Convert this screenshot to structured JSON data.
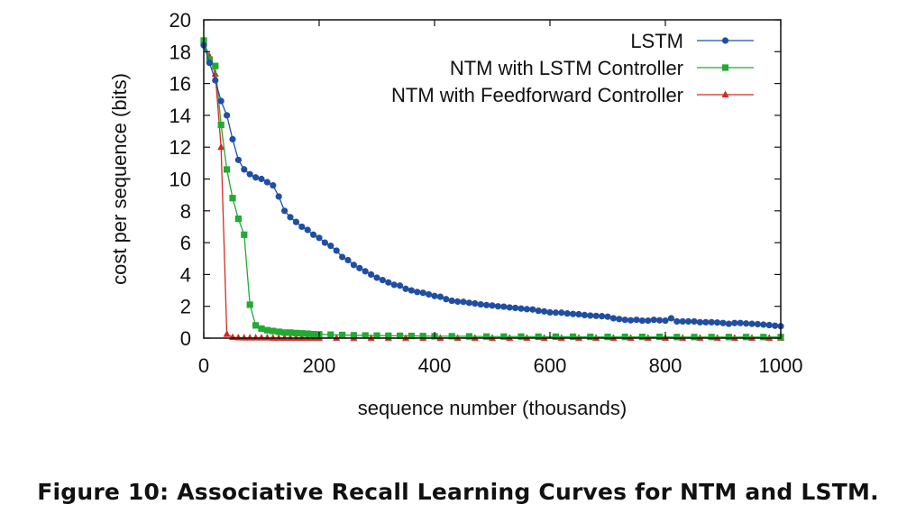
{
  "caption": "Figure 10: Associative Recall Learning Curves for NTM and LSTM.",
  "chart_data": {
    "type": "line",
    "xlabel": "sequence number (thousands)",
    "ylabel": "cost per sequence (bits)",
    "xlim": [
      0,
      1000
    ],
    "ylim": [
      0,
      20
    ],
    "xticks": [
      0,
      200,
      400,
      600,
      800,
      1000
    ],
    "yticks": [
      0,
      2,
      4,
      6,
      8,
      10,
      12,
      14,
      16,
      18,
      20
    ],
    "grid": false,
    "legend_position": "top-right",
    "series": [
      {
        "name": "LSTM",
        "color": "#1f4ea3",
        "marker": "circle",
        "x": [
          0,
          10,
          20,
          30,
          40,
          50,
          60,
          70,
          80,
          90,
          100,
          110,
          120,
          130,
          140,
          150,
          160,
          170,
          180,
          190,
          200,
          210,
          220,
          230,
          240,
          250,
          260,
          270,
          280,
          290,
          300,
          310,
          320,
          330,
          340,
          350,
          360,
          370,
          380,
          390,
          400,
          410,
          420,
          430,
          440,
          450,
          460,
          470,
          480,
          490,
          500,
          510,
          520,
          530,
          540,
          550,
          560,
          570,
          580,
          590,
          600,
          610,
          620,
          630,
          640,
          650,
          660,
          670,
          680,
          690,
          700,
          710,
          720,
          730,
          740,
          750,
          760,
          770,
          780,
          790,
          800,
          810,
          820,
          830,
          840,
          850,
          860,
          870,
          880,
          890,
          900,
          910,
          920,
          930,
          940,
          950,
          960,
          970,
          980,
          990,
          1000
        ],
        "y": [
          18.4,
          17.3,
          16.2,
          14.9,
          14.0,
          12.5,
          11.2,
          10.6,
          10.3,
          10.1,
          10.0,
          9.8,
          9.6,
          8.9,
          8.0,
          7.6,
          7.3,
          7.0,
          6.8,
          6.5,
          6.3,
          6.0,
          5.8,
          5.5,
          5.1,
          4.9,
          4.6,
          4.4,
          4.2,
          4.0,
          3.8,
          3.65,
          3.5,
          3.35,
          3.3,
          3.1,
          3.0,
          2.9,
          2.85,
          2.75,
          2.65,
          2.6,
          2.45,
          2.35,
          2.3,
          2.28,
          2.22,
          2.18,
          2.12,
          2.08,
          2.05,
          2.0,
          1.98,
          1.93,
          1.9,
          1.86,
          1.82,
          1.8,
          1.72,
          1.68,
          1.62,
          1.6,
          1.6,
          1.55,
          1.52,
          1.5,
          1.45,
          1.42,
          1.4,
          1.38,
          1.35,
          1.25,
          1.2,
          1.15,
          1.12,
          1.15,
          1.1,
          1.1,
          1.15,
          1.12,
          1.1,
          1.25,
          1.05,
          1.05,
          1.05,
          1.05,
          1.0,
          1.0,
          1.0,
          0.98,
          0.95,
          0.9,
          0.95,
          0.95,
          0.92,
          0.9,
          0.88,
          0.85,
          0.82,
          0.78,
          0.75
        ]
      },
      {
        "name": "NTM with LSTM Controller",
        "color": "#22aa33",
        "marker": "square",
        "x": [
          0,
          10,
          20,
          30,
          40,
          50,
          60,
          70,
          80,
          90,
          100,
          110,
          120,
          130,
          140,
          150,
          160,
          170,
          180,
          190,
          200,
          220,
          240,
          260,
          280,
          300,
          320,
          340,
          360,
          380,
          400,
          430,
          460,
          490,
          520,
          550,
          580,
          610,
          640,
          670,
          700,
          730,
          760,
          790,
          820,
          850,
          880,
          910,
          940,
          970,
          1000
        ],
        "y": [
          18.7,
          17.5,
          17.1,
          13.4,
          10.6,
          8.8,
          7.5,
          6.5,
          2.1,
          0.8,
          0.6,
          0.5,
          0.45,
          0.4,
          0.35,
          0.35,
          0.32,
          0.3,
          0.28,
          0.25,
          0.24,
          0.22,
          0.2,
          0.18,
          0.17,
          0.16,
          0.15,
          0.15,
          0.14,
          0.13,
          0.12,
          0.12,
          0.11,
          0.1,
          0.1,
          0.1,
          0.09,
          0.09,
          0.09,
          0.08,
          0.08,
          0.08,
          0.08,
          0.08,
          0.07,
          0.07,
          0.07,
          0.07,
          0.07,
          0.07,
          0.07
        ]
      },
      {
        "name": "NTM with Feedforward Controller",
        "color": "#d42a1e",
        "marker": "triangle",
        "x": [
          0,
          10,
          20,
          30,
          40,
          50,
          60,
          70,
          80,
          90,
          100,
          110,
          120,
          130,
          140,
          150,
          160,
          170,
          180,
          190,
          200,
          230,
          260,
          290,
          320,
          350,
          380,
          410,
          440,
          470,
          500,
          530,
          560,
          590,
          620,
          650,
          680,
          710,
          740,
          770,
          800,
          830,
          860,
          890,
          920,
          950,
          980,
          1000
        ],
        "y": [
          18.6,
          17.7,
          16.6,
          12.0,
          0.25,
          0.05,
          0.03,
          0.02,
          0.02,
          0.02,
          0.02,
          0.02,
          0.01,
          0.01,
          0.01,
          0.01,
          0.01,
          0.01,
          0.01,
          0.01,
          0.01,
          0.01,
          0.01,
          0.01,
          0.01,
          0.01,
          0.01,
          0.01,
          0.01,
          0.01,
          0.01,
          0.01,
          0.01,
          0.01,
          0.01,
          0.01,
          0.01,
          0.01,
          0.01,
          0.01,
          0.01,
          0.01,
          0.01,
          0.01,
          0.01,
          0.01,
          0.01,
          0.01
        ]
      }
    ]
  }
}
